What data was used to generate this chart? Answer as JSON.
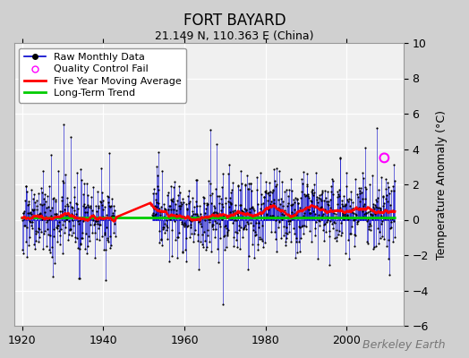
{
  "title": "FORT BAYARD",
  "subtitle": "21.149 N, 110.363 E (China)",
  "ylabel": "Temperature Anomaly (°C)",
  "xlabel": "",
  "xlim": [
    1918,
    2014
  ],
  "ylim": [
    -6,
    10
  ],
  "yticks": [
    -6,
    -4,
    -2,
    0,
    2,
    4,
    6,
    8,
    10
  ],
  "xticks": [
    1920,
    1940,
    1960,
    1980,
    2000
  ],
  "year_start": 1920,
  "year_end": 2012,
  "raw_color": "#0000cc",
  "dot_color": "#000000",
  "moving_avg_color": "#ff0000",
  "trend_color": "#00cc00",
  "qc_color": "#ff00ff",
  "bg_color": "#f0f0f0",
  "fig_color": "#d0d0d0",
  "grid_color": "#ffffff",
  "legend_fontsize": 8,
  "title_fontsize": 12,
  "subtitle_fontsize": 9,
  "watermark": "Berkeley Earth",
  "watermark_fontsize": 9,
  "qc_fail_x": 2009.3,
  "qc_fail_y": 3.5,
  "trend_slope": 0.004,
  "trend_intercept": 0.08,
  "moving_avg_window": 60,
  "gap_start": 1943,
  "gap_end": 1952
}
